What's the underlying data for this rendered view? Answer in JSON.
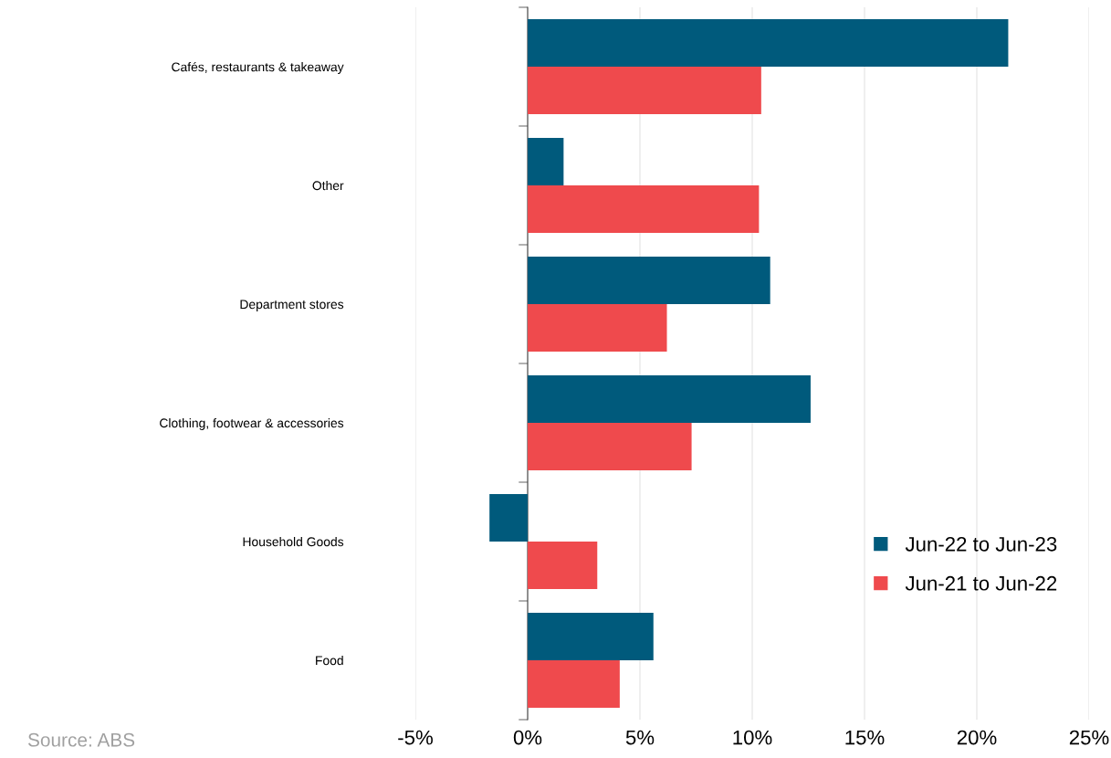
{
  "chart_data": {
    "type": "bar",
    "orientation": "horizontal",
    "categories": [
      "Cafés, restaurants & takeaway",
      "Other",
      "Department stores",
      "Clothing, footwear & accessories",
      "Household Goods",
      "Food"
    ],
    "series": [
      {
        "name": "Jun-22 to Jun-23",
        "color": "#005a7c",
        "values": [
          21.4,
          1.6,
          10.8,
          12.6,
          -1.7,
          5.6
        ]
      },
      {
        "name": "Jun-21 to Jun-22",
        "color": "#ef4a4d",
        "values": [
          10.4,
          10.3,
          6.2,
          7.3,
          3.1,
          4.1
        ]
      }
    ],
    "xlim": [
      -5,
      25
    ],
    "xticks": [
      {
        "value": -5,
        "label": "-5%"
      },
      {
        "value": 0,
        "label": "0%"
      },
      {
        "value": 5,
        "label": "5%"
      },
      {
        "value": 10,
        "label": "10%"
      },
      {
        "value": 15,
        "label": "15%"
      },
      {
        "value": 20,
        "label": "20%"
      },
      {
        "value": 25,
        "label": "25%"
      }
    ],
    "grid": "x",
    "legend": "lower right",
    "annotations": [
      "Source: ABS"
    ]
  }
}
